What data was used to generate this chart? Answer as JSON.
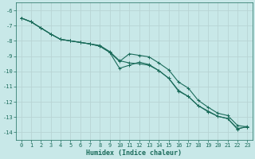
{
  "xlabel": "Humidex (Indice chaleur)",
  "background_color": "#c8e8e8",
  "grid_color": "#b8d4d4",
  "line_color": "#1a6b5a",
  "x_data": [
    0,
    1,
    2,
    3,
    4,
    5,
    6,
    7,
    8,
    9,
    10,
    11,
    12,
    13,
    14,
    15,
    16,
    17,
    18,
    19,
    20,
    21,
    22,
    23
  ],
  "series": [
    [
      -6.5,
      -6.75,
      -7.15,
      -7.55,
      -7.9,
      -8.0,
      -8.1,
      -8.2,
      -8.35,
      -8.75,
      -9.35,
      -8.85,
      -8.95,
      -9.05,
      -9.45,
      -9.9,
      -10.7,
      -11.1,
      -11.9,
      -12.35,
      -12.75,
      -12.9,
      -13.55,
      -13.65
    ],
    [
      -6.5,
      -6.75,
      -7.15,
      -7.55,
      -7.9,
      -8.0,
      -8.1,
      -8.2,
      -8.35,
      -8.75,
      -9.8,
      -9.6,
      -9.4,
      -9.55,
      -9.95,
      -10.45,
      -11.25,
      -11.65,
      -12.25,
      -12.65,
      -12.95,
      -13.1,
      -13.8,
      -13.6
    ],
    [
      -6.5,
      -6.75,
      -7.15,
      -7.55,
      -7.9,
      -8.0,
      -8.1,
      -8.2,
      -8.3,
      -8.7,
      -9.3,
      -9.45,
      -9.5,
      -9.6,
      -9.95,
      -10.45,
      -11.3,
      -11.65,
      -12.25,
      -12.6,
      -12.95,
      -13.1,
      -13.75,
      -13.65
    ]
  ],
  "ylim": [
    -14.5,
    -5.5
  ],
  "xlim": [
    -0.5,
    23.5
  ],
  "yticks": [
    -6,
    -7,
    -8,
    -9,
    -10,
    -11,
    -12,
    -13,
    -14
  ],
  "xticks": [
    0,
    1,
    2,
    3,
    4,
    5,
    6,
    7,
    8,
    9,
    10,
    11,
    12,
    13,
    14,
    15,
    16,
    17,
    18,
    19,
    20,
    21,
    22,
    23
  ],
  "marker": "+",
  "markersize": 3,
  "linewidth": 0.8,
  "font_size_ticks": 5,
  "font_size_xlabel": 6
}
